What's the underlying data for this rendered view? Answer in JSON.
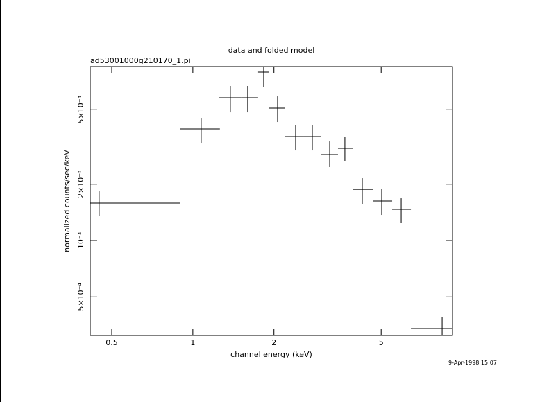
{
  "chart_data": {
    "type": "errorbar",
    "title": "data and folded model",
    "subtitle": "ad53001000g210170_1.pi",
    "x_label": "channel energy (keV)",
    "y_label": "normalized counts/sec/keV",
    "timestamp": "9-Apr-1998 15:07",
    "log_x": true,
    "log_y": true,
    "color": "#000000",
    "xlim": [
      0.416,
      9.2
    ],
    "ylim": [
      0.000311,
      0.008505
    ],
    "xticks": [
      0.5,
      1,
      2,
      5
    ],
    "yticks": [
      {
        "value": 0.0005,
        "label": "5×10⁻⁴"
      },
      {
        "value": 0.001,
        "label": "10⁻³"
      },
      {
        "value": 0.002,
        "label": "2×10⁻³"
      },
      {
        "value": 0.005,
        "label": "5×10⁻³"
      }
    ],
    "x": [
      0.449,
      1.074,
      1.378,
      1.598,
      1.832,
      2.063,
      2.407,
      2.776,
      3.22,
      3.667,
      4.255,
      5.023,
      5.933,
      8.42
    ],
    "x_low": [
      0.416,
      0.899,
      1.253,
      1.515,
      1.747,
      1.921,
      2.202,
      2.585,
      2.981,
      3.457,
      3.939,
      4.651,
      5.492,
      6.447
    ],
    "x_high": [
      0.899,
      1.26,
      1.515,
      1.747,
      1.921,
      2.202,
      2.585,
      2.981,
      3.457,
      3.939,
      4.651,
      5.492,
      6.447,
      9.2
    ],
    "values": [
      0.001585,
      0.003947,
      0.005794,
      0.005794,
      0.007943,
      0.005098,
      0.003594,
      0.003594,
      0.002879,
      0.003109,
      0.001879,
      0.001626,
      0.001468,
      0.0003386
    ],
    "y_low": [
      0.001348,
      0.0033,
      0.004842,
      0.004842,
      0.006585,
      0.004298,
      0.00303,
      0.00303,
      0.00247,
      0.002667,
      0.001571,
      0.001371,
      0.001238,
      0.000311
    ],
    "y_high": [
      0.001832,
      0.004524,
      0.006698,
      0.006698,
      0.008505,
      0.005892,
      0.00412,
      0.00412,
      0.003385,
      0.003594,
      0.002154,
      0.001896,
      0.001682,
      0.0003914
    ]
  }
}
